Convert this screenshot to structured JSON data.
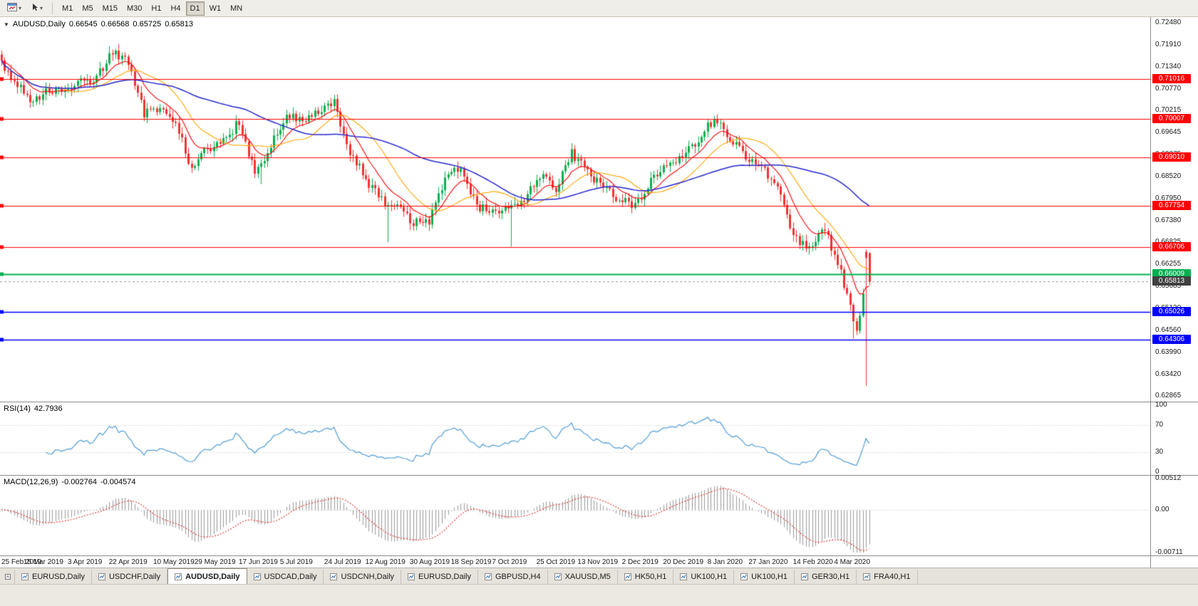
{
  "icons": {
    "collapse_triangle": "▼",
    "caret_down": "▾"
  },
  "toolbar": {
    "timeframes": [
      "M1",
      "M5",
      "M15",
      "M30",
      "H1",
      "H4",
      "D1",
      "W1",
      "MN"
    ],
    "active_timeframe": "D1"
  },
  "chart_data": {
    "type": "candlestick",
    "symbol": "AUDUSD",
    "period": "Daily",
    "title": {
      "symbol": "AUDUSD,Daily",
      "open": "0.66545",
      "high": "0.66568",
      "low": "0.65725",
      "close": "0.65813"
    },
    "price_axis_ticks": [
      "0.72480",
      "0.71910",
      "0.71340",
      "0.70770",
      "0.70215",
      "0.69645",
      "0.69075",
      "0.68520",
      "0.67950",
      "0.67380",
      "0.66825",
      "0.66255",
      "0.65685",
      "0.65130",
      "0.64560",
      "0.63990",
      "0.63420",
      "0.62865"
    ],
    "price_range": {
      "top": 0.7262,
      "bottom": 0.6272
    },
    "dates": [
      "25 Feb 2019",
      "15 Mar 2019",
      "3 Apr 2019",
      "22 Apr 2019",
      "10 May 2019",
      "29 May 2019",
      "17 Jun 2019",
      "5 Jul 2019",
      "24 Jul 2019",
      "12 Aug 2019",
      "30 Aug 2019",
      "18 Sep 2019",
      "7 Oct 2019",
      "25 Oct 2019",
      "13 Nov 2019",
      "2 Dec 2019",
      "20 Dec 2019",
      "8 Jan 2020",
      "27 Jan 2020",
      "14 Feb 2020",
      "4 Mar 2020"
    ],
    "weekly_close_anchors": [
      0.714,
      0.7085,
      0.7045,
      0.7075,
      0.708,
      0.7095,
      0.7105,
      0.7175,
      0.715,
      0.7015,
      0.7025,
      0.6995,
      0.687,
      0.6925,
      0.694,
      0.6995,
      0.6858,
      0.693,
      0.7015,
      0.699,
      0.7018,
      0.7042,
      0.6915,
      0.6845,
      0.679,
      0.6775,
      0.6735,
      0.6735,
      0.6845,
      0.688,
      0.6775,
      0.6765,
      0.6772,
      0.6792,
      0.6855,
      0.6822,
      0.6912,
      0.6862,
      0.6822,
      0.6792,
      0.6778,
      0.6842,
      0.6882,
      0.6902,
      0.6948,
      0.7002,
      0.6952,
      0.6905,
      0.6872,
      0.6828,
      0.6692,
      0.6672,
      0.6712,
      0.6605,
      0.6452,
      0.668
    ],
    "anomalies": [
      {
        "i": 82,
        "l": 0.6832
      },
      {
        "i": 122,
        "l": 0.6682
      },
      {
        "i": 161,
        "l": 0.6671
      },
      {
        "i": 269,
        "l": 0.6434
      },
      {
        "i": 273,
        "o": 0.6658,
        "h": 0.6664,
        "l": 0.6313,
        "c": 0.6642
      },
      {
        "i": 274,
        "o": 0.66545,
        "h": 0.66568,
        "l": 0.65725,
        "c": 0.65813
      }
    ],
    "horizontal_lines": [
      {
        "price": 0.71016,
        "label": "0.71016",
        "color": "#FF0000",
        "width": 1.2
      },
      {
        "price": 0.70007,
        "label": "0.70007",
        "color": "#FF0000",
        "width": 1.2
      },
      {
        "price": 0.6901,
        "label": "0.69010",
        "color": "#FF0000",
        "width": 1.2
      },
      {
        "price": 0.67754,
        "label": "0.67754",
        "color": "#FF0000",
        "width": 1.2
      },
      {
        "price": 0.66706,
        "label": "0.66706",
        "color": "#FF0000",
        "width": 1.2
      },
      {
        "price": 0.66009,
        "label": "0.66009",
        "color": "#00B050",
        "width": 1.8
      },
      {
        "price": 0.65026,
        "label": "0.65026",
        "color": "#0000FF",
        "width": 1.4
      },
      {
        "price": 0.64306,
        "label": "0.64306",
        "color": "#0000FF",
        "width": 1.4
      }
    ],
    "current_price": {
      "value": 0.65813,
      "label": "0.65813",
      "badge_color": "#404040",
      "line_color": "#9A9A9A"
    },
    "moving_averages": [
      {
        "period": 10,
        "method": "ema",
        "color": "#FF0000"
      },
      {
        "period": 20,
        "method": "sma",
        "color": "#FFA500"
      },
      {
        "period": 55,
        "method": "sma",
        "color": "#2727CC"
      }
    ],
    "colors": {
      "bull": "#0DAE4F",
      "bear": "#F03333",
      "background": "#FFFFFF",
      "axis_text": "#1A1A1A"
    }
  },
  "rsi": {
    "name": "RSI(14)",
    "value": "42.7936",
    "period": 14,
    "levels": [
      70,
      30
    ],
    "axis_ticks": [
      {
        "v": 100,
        "label": "100"
      },
      {
        "v": 70,
        "label": "70"
      },
      {
        "v": 30,
        "label": "30"
      },
      {
        "v": 0,
        "label": "0"
      }
    ],
    "color": "#509CD6"
  },
  "macd": {
    "name": "MACD(12,26,9)",
    "value_main": "-0.002764",
    "value_signal": "-0.004574",
    "fast": 12,
    "slow": 26,
    "signal": 9,
    "scale": {
      "max": 0.005121,
      "min": -0.007111
    },
    "axis_ticks": [
      {
        "v": 0.005121,
        "label": "0.00512"
      },
      {
        "v": 0,
        "label": "0.00"
      },
      {
        "v": -0.007111,
        "label": "-0.00711"
      }
    ],
    "histogram_color": "#9A9A9A",
    "signal_color": "#E03030"
  },
  "tabs": {
    "items": [
      "EURUSD,Daily",
      "USDCHF,Daily",
      "AUDUSD,Daily",
      "USDCAD,Daily",
      "USDCNH,Daily",
      "EURUSD,Daily",
      "GBPUSD,H4",
      "XAUUSD,M5",
      "HK50,H1",
      "UK100,H1",
      "UK100,H1",
      "GER30,H1",
      "FRA40,H1"
    ],
    "active_index": 2
  }
}
